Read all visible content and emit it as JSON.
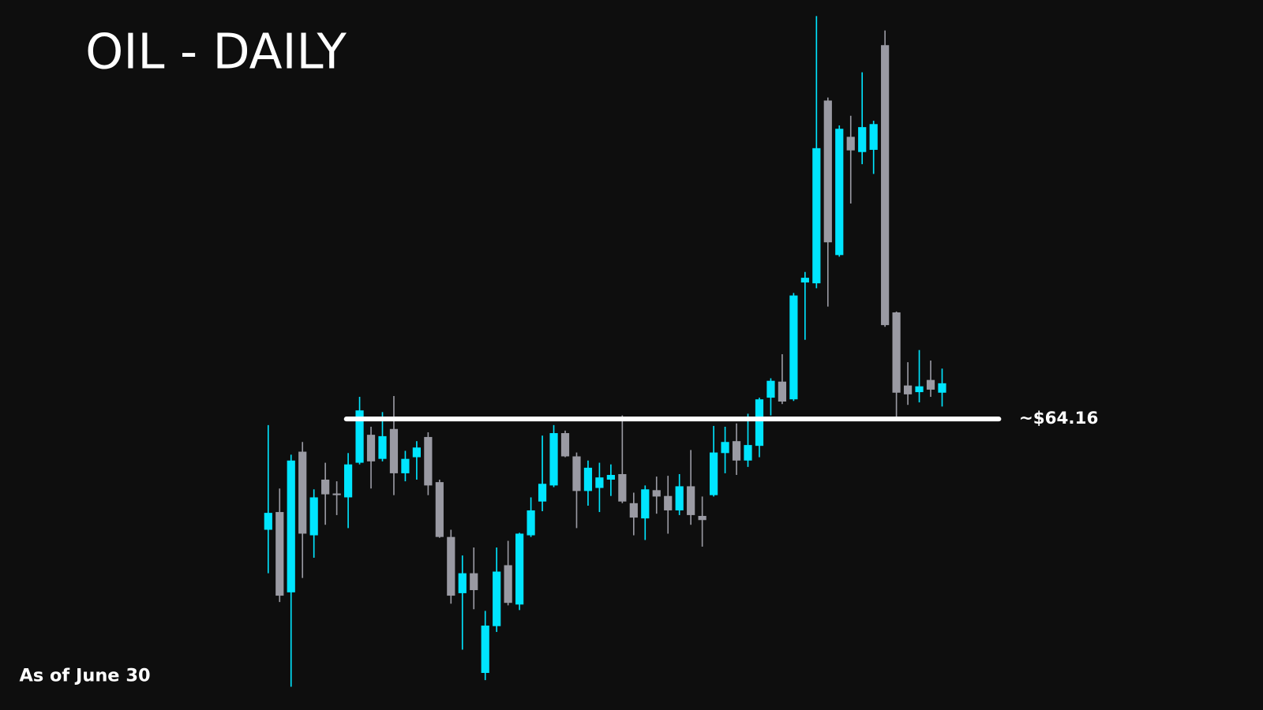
{
  "chart_data": {
    "type": "candlestick",
    "title": "OIL - DAILY",
    "note": "As of June 30",
    "up_color": "#00e5ff",
    "down_color": "#9a9aa3",
    "level": {
      "value": 64.16,
      "label": "~$64.16",
      "color": "#ffffff"
    },
    "ylim": [
      54,
      79
    ],
    "open": [
      60.16,
      60.8,
      57.9,
      62.98,
      59.96,
      61.97,
      61.47,
      61.33,
      62.58,
      63.59,
      62.72,
      63.8,
      62.2,
      62.78,
      63.51,
      61.88,
      59.9,
      57.87,
      58.59,
      54.99,
      56.68,
      58.88,
      57.46,
      59.96,
      61.18,
      61.76,
      63.65,
      62.81,
      61.56,
      61.67,
      61.97,
      62.17,
      61.12,
      60.57,
      61.59,
      61.38,
      60.86,
      61.73,
      60.66,
      61.41,
      62.93,
      63.36,
      62.66,
      63.19,
      64.93,
      65.51,
      64.87,
      69.09,
      69.06,
      75.66,
      70.08,
      74.35,
      73.8,
      73.88,
      77.66,
      68.01,
      65.37,
      65.13,
      65.57,
      65.11
    ],
    "high": [
      63.94,
      61.65,
      62.87,
      63.33,
      61.62,
      62.58,
      61.91,
      62.93,
      64.96,
      63.88,
      64.41,
      64.99,
      63.01,
      63.36,
      63.68,
      61.97,
      60.16,
      59.23,
      59.52,
      57.23,
      59.52,
      59.76,
      60.05,
      61.33,
      63.56,
      63.94,
      63.74,
      62.95,
      62.66,
      62.58,
      62.52,
      64.29,
      61.5,
      61.76,
      62.08,
      62.11,
      62.17,
      63.04,
      61.36,
      63.91,
      63.88,
      64.0,
      64.35,
      64.93,
      65.63,
      66.5,
      68.71,
      69.47,
      78.71,
      75.77,
      74.76,
      75.11,
      76.68,
      74.93,
      78.19,
      68.04,
      66.21,
      66.65,
      66.27,
      65.98
    ],
    "low": [
      58.59,
      57.55,
      54.49,
      58.42,
      59.15,
      60.34,
      60.69,
      60.22,
      62.52,
      61.65,
      62.63,
      61.41,
      61.91,
      61.97,
      61.41,
      59.87,
      57.49,
      55.83,
      57.29,
      54.73,
      56.47,
      57.43,
      57.26,
      59.9,
      60.83,
      61.7,
      62.78,
      60.22,
      61.03,
      60.8,
      61.38,
      61.12,
      59.96,
      59.79,
      60.74,
      60.02,
      60.69,
      60.34,
      59.55,
      61.36,
      62.2,
      62.14,
      62.43,
      62.78,
      64.29,
      64.7,
      64.81,
      67.02,
      68.88,
      68.22,
      70.02,
      71.94,
      73.36,
      73.01,
      67.49,
      64.12,
      64.67,
      64.76,
      64.96,
      64.61
    ],
    "close": [
      60.77,
      57.78,
      62.66,
      60.02,
      61.33,
      61.44,
      61.41,
      62.52,
      64.47,
      62.63,
      63.54,
      62.2,
      62.72,
      63.13,
      61.76,
      59.9,
      57.78,
      58.59,
      57.98,
      56.7,
      58.65,
      57.52,
      60.02,
      60.86,
      61.82,
      63.65,
      62.81,
      61.56,
      62.4,
      62.05,
      62.14,
      61.18,
      60.6,
      61.62,
      61.36,
      60.86,
      61.73,
      60.69,
      60.51,
      62.95,
      63.33,
      62.66,
      63.22,
      64.87,
      65.54,
      64.79,
      68.62,
      69.26,
      73.94,
      70.54,
      74.64,
      73.86,
      74.7,
      74.81,
      67.55,
      65.11,
      65.05,
      65.34,
      65.22,
      65.45
    ]
  }
}
